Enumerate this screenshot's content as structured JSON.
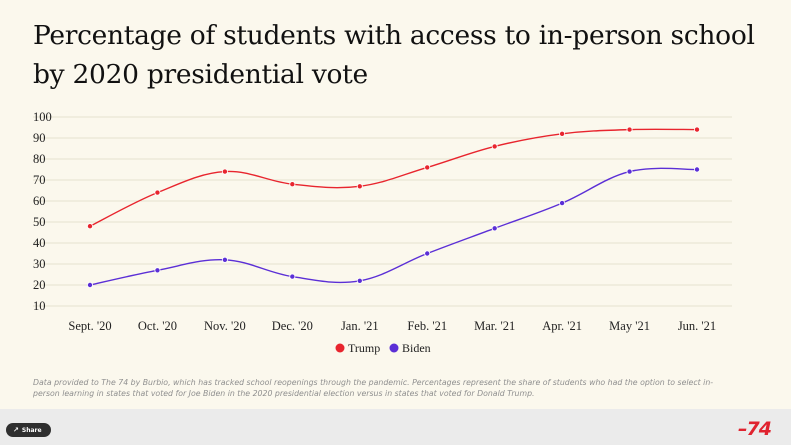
{
  "chart_data": {
    "type": "line",
    "title": "Percentage of students with access to in-person school by 2020 presidential vote",
    "categories": [
      "Sept. '20",
      "Oct. '20",
      "Nov. '20",
      "Dec. '20",
      "Jan. '21",
      "Feb. '21",
      "Mar. '21",
      "Apr. '21",
      "May '21",
      "Jun. '21"
    ],
    "series": [
      {
        "name": "Trump",
        "color": "#e8252e",
        "values": [
          48,
          64,
          74,
          68,
          67,
          76,
          86,
          92,
          94,
          94
        ]
      },
      {
        "name": "Biden",
        "color": "#5b2fd6",
        "values": [
          20,
          27,
          32,
          24,
          22,
          35,
          47,
          59,
          74,
          75
        ]
      }
    ],
    "yticks": [
      10,
      20,
      30,
      40,
      50,
      60,
      70,
      80,
      90,
      100
    ],
    "ylim": [
      10,
      100
    ],
    "grid": true,
    "legend_position": "bottom-center",
    "footnote": "Data provided to The 74 by Burbio, which has tracked school reopenings through the pandemic. Percentages represent the share of students who had the option to select in-person learning in states that voted for Joe Biden in the 2020 presidential election versus in states that voted for Donald Trump."
  },
  "footer": {
    "share_label": "Share",
    "share_icon": "share-icon",
    "logo": "74",
    "logo_color": "#e0232f"
  }
}
